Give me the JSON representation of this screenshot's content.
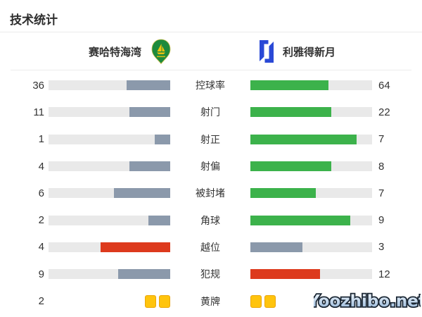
{
  "title": "技术统计",
  "header": {
    "home_team": {
      "name": "赛哈特海湾",
      "logo": "green-teardrop-sailboat-crest"
    },
    "away_team": {
      "name": "利雅得新月",
      "logo": "blue-alhilal-h-crest"
    }
  },
  "colors": {
    "home": "#8b99ab",
    "away": "#3cb24b",
    "negative": "#dd3a1d",
    "neutral": "#8b99ab",
    "track": "#e9e9e9",
    "card": "#ffc40d",
    "card_border": "#eaa50a"
  },
  "rows": [
    {
      "label": "控球率",
      "home": 36,
      "away": 64,
      "home_color": "home",
      "away_color": "away",
      "type": "bar"
    },
    {
      "label": "射门",
      "home": 11,
      "away": 22,
      "home_color": "home",
      "away_color": "away",
      "type": "bar"
    },
    {
      "label": "射正",
      "home": 1,
      "away": 7,
      "home_color": "home",
      "away_color": "away",
      "type": "bar"
    },
    {
      "label": "射偏",
      "home": 4,
      "away": 8,
      "home_color": "home",
      "away_color": "away",
      "type": "bar"
    },
    {
      "label": "被封堵",
      "home": 6,
      "away": 7,
      "home_color": "home",
      "away_color": "away",
      "type": "bar"
    },
    {
      "label": "角球",
      "home": 2,
      "away": 9,
      "home_color": "home",
      "away_color": "away",
      "type": "bar"
    },
    {
      "label": "越位",
      "home": 4,
      "away": 3,
      "home_color": "negative",
      "away_color": "neutral",
      "type": "bar"
    },
    {
      "label": "犯规",
      "home": 9,
      "away": 12,
      "home_color": "neutral",
      "away_color": "negative",
      "type": "bar"
    },
    {
      "label": "黄牌",
      "home": 2,
      "away": 2,
      "home_color": "card",
      "away_color": "card",
      "type": "cards"
    }
  ],
  "chart_data": {
    "type": "bar",
    "title": "技术统计",
    "categories": [
      "控球率",
      "射门",
      "射正",
      "射偏",
      "被封堵",
      "角球",
      "越位",
      "犯规",
      "黄牌"
    ],
    "series": [
      {
        "name": "赛哈特海湾",
        "values": [
          36,
          11,
          1,
          4,
          6,
          2,
          4,
          9,
          2
        ]
      },
      {
        "name": "利雅得新月",
        "values": [
          64,
          22,
          7,
          8,
          7,
          9,
          3,
          12,
          2
        ]
      }
    ],
    "layout": "paired horizontal bars, home right-anchored gray-blue, away left-anchored green, red for leading negative stats, bar length = value/(home+away)"
  },
  "watermark": "Yoozhibo.net"
}
